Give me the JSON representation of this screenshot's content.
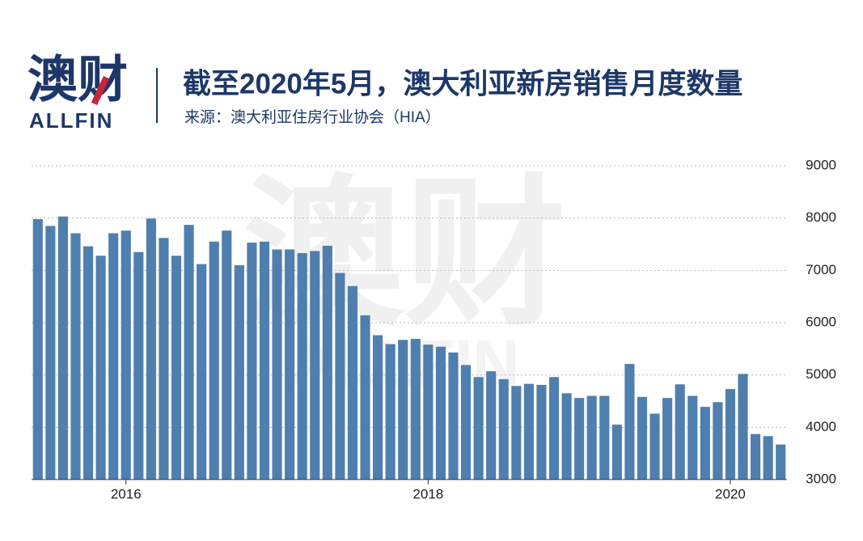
{
  "logo": {
    "name": "澳财",
    "latin": "ALLFIN"
  },
  "chart_data": {
    "type": "bar",
    "title": "截至2020年5月，澳大利亚新房销售月度数量",
    "subtitle": "来源：澳大利亚住房行业协会（HIA）",
    "categories": [
      null,
      null,
      null,
      null,
      null,
      null,
      null,
      "2016",
      null,
      null,
      null,
      null,
      null,
      null,
      null,
      null,
      null,
      null,
      null,
      null,
      null,
      null,
      null,
      null,
      null,
      null,
      null,
      null,
      null,
      null,
      null,
      "2018",
      null,
      null,
      null,
      null,
      null,
      null,
      null,
      null,
      null,
      null,
      null,
      null,
      null,
      null,
      null,
      null,
      null,
      null,
      null,
      null,
      null,
      null,
      null,
      "2020",
      null,
      null,
      null,
      null
    ],
    "values": [
      7980,
      7850,
      8030,
      7710,
      7460,
      7280,
      7710,
      7760,
      7350,
      7990,
      7620,
      7280,
      7870,
      7120,
      7550,
      7760,
      7100,
      7530,
      7550,
      7400,
      7400,
      7330,
      7370,
      7470,
      6950,
      6700,
      6140,
      5760,
      5590,
      5670,
      5690,
      5580,
      5540,
      5430,
      5190,
      4960,
      5070,
      4920,
      4790,
      4830,
      4810,
      4960,
      4650,
      4560,
      4600,
      4600,
      4050,
      5210,
      4580,
      4260,
      4560,
      4820,
      4600,
      4390,
      4480,
      4730,
      5020,
      3870,
      3830,
      3670
    ],
    "color": "#4f7fae",
    "ylim": [
      3000,
      9000
    ],
    "yticks": [
      3000,
      4000,
      5000,
      6000,
      7000,
      8000,
      9000
    ],
    "grid": true
  }
}
